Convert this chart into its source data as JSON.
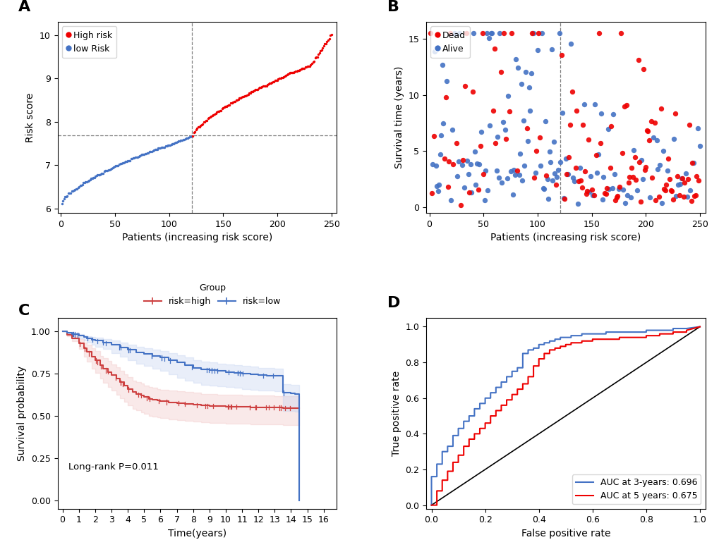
{
  "panel_A": {
    "title": "A",
    "xlabel": "Patients (increasing risk score)",
    "ylabel": "Risk score",
    "n_total": 250,
    "n_low": 121,
    "cutoff_x": 121,
    "cutoff_y": 7.68,
    "ylim": [
      5.9,
      10.3
    ],
    "xlim": [
      -3,
      255
    ],
    "yticks": [
      6,
      7,
      8,
      9,
      10
    ],
    "xticks": [
      0,
      50,
      100,
      150,
      200,
      250
    ],
    "low_color": "#4472C4",
    "high_color": "#EE0000",
    "dot_size": 6
  },
  "panel_B": {
    "title": "B",
    "xlabel": "Patients (increasing risk score)",
    "ylabel": "Survival time (years)",
    "n_total": 250,
    "cutoff_x": 121,
    "ylim": [
      -0.5,
      16.5
    ],
    "xlim": [
      -3,
      255
    ],
    "yticks": [
      0,
      5,
      10,
      15
    ],
    "xticks": [
      0,
      50,
      100,
      150,
      200,
      250
    ],
    "dead_color": "#EE0000",
    "alive_color": "#4472C4",
    "dot_size": 28
  },
  "panel_C": {
    "title": "C",
    "xlabel": "Time(years)",
    "ylabel": "Survival probability",
    "pvalue_text": "Long-rank P=0.011",
    "high_color": "#CD4040",
    "low_color": "#4472C4",
    "high_fill": "#F0C0C0",
    "low_fill": "#C0D0F0",
    "ylim": [
      -0.05,
      1.08
    ],
    "xlim": [
      -0.3,
      16.8
    ],
    "yticks": [
      0.0,
      0.25,
      0.5,
      0.75,
      1.0
    ],
    "xticks": [
      0,
      1,
      2,
      3,
      4,
      5,
      6,
      7,
      8,
      9,
      10,
      11,
      12,
      13,
      14,
      15,
      16
    ]
  },
  "panel_D": {
    "title": "D",
    "xlabel": "False positive rate",
    "ylabel": "True positive rate",
    "auc_3yr": 0.696,
    "auc_5yr": 0.675,
    "line_color_3yr": "#4472C4",
    "line_color_5yr": "#EE0000",
    "xlim": [
      -0.02,
      1.02
    ],
    "ylim": [
      -0.02,
      1.05
    ],
    "xticks": [
      0.0,
      0.2,
      0.4,
      0.6,
      0.8,
      1.0
    ],
    "yticks": [
      0.0,
      0.2,
      0.4,
      0.6,
      0.8,
      1.0
    ]
  },
  "background_color": "#FFFFFF",
  "label_fontsize": 16,
  "axis_fontsize": 10,
  "tick_fontsize": 9
}
